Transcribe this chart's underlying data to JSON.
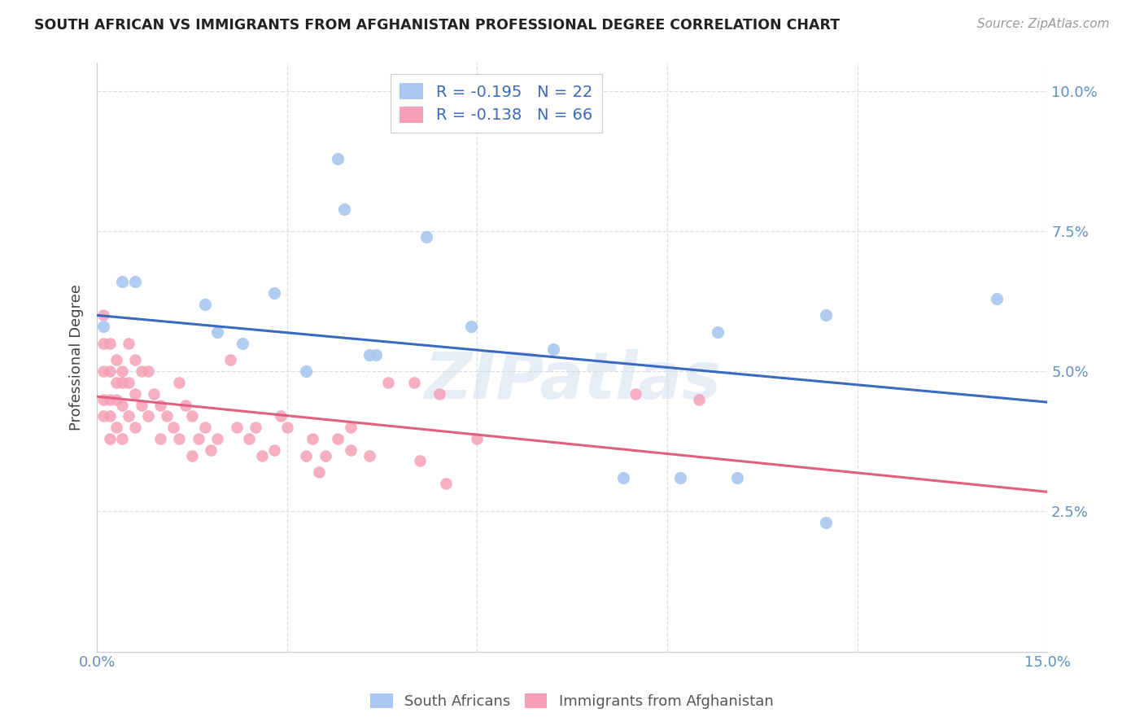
{
  "title": "SOUTH AFRICAN VS IMMIGRANTS FROM AFGHANISTAN PROFESSIONAL DEGREE CORRELATION CHART",
  "source": "Source: ZipAtlas.com",
  "ylabel": "Professional Degree",
  "xlim": [
    0.0,
    0.15
  ],
  "ylim": [
    0.0,
    0.105
  ],
  "blue_R": -0.195,
  "blue_N": 22,
  "pink_R": -0.138,
  "pink_N": 66,
  "blue_color": "#a8c8f0",
  "pink_color": "#f5a0b8",
  "blue_line_color": "#3a6abf",
  "pink_line_color": "#e06080",
  "grid_color": "#d8dde8",
  "background_color": "#ffffff",
  "legend_label_blue": "South Africans",
  "legend_label_pink": "Immigrants from Afghanistan",
  "blue_line_x0": 0.0,
  "blue_line_x1": 0.15,
  "blue_line_y0": 0.06,
  "blue_line_y1": 0.0445,
  "pink_line_x0": 0.0,
  "pink_line_x1": 0.15,
  "pink_line_y0": 0.0455,
  "pink_line_y1": 0.0285,
  "blue_x": [
    0.001,
    0.004,
    0.006,
    0.017,
    0.019,
    0.023,
    0.028,
    0.033,
    0.038,
    0.039,
    0.052,
    0.059,
    0.043,
    0.044,
    0.072,
    0.083,
    0.092,
    0.098,
    0.101,
    0.115,
    0.115,
    0.142
  ],
  "blue_y": [
    0.058,
    0.066,
    0.066,
    0.062,
    0.057,
    0.055,
    0.064,
    0.05,
    0.088,
    0.079,
    0.074,
    0.058,
    0.053,
    0.053,
    0.054,
    0.031,
    0.031,
    0.057,
    0.031,
    0.023,
    0.06,
    0.063
  ],
  "pink_x": [
    0.001,
    0.001,
    0.001,
    0.001,
    0.001,
    0.002,
    0.002,
    0.002,
    0.002,
    0.002,
    0.003,
    0.003,
    0.003,
    0.003,
    0.004,
    0.004,
    0.004,
    0.004,
    0.005,
    0.005,
    0.005,
    0.006,
    0.006,
    0.006,
    0.007,
    0.007,
    0.008,
    0.008,
    0.009,
    0.01,
    0.01,
    0.011,
    0.012,
    0.013,
    0.013,
    0.014,
    0.015,
    0.015,
    0.016,
    0.017,
    0.018,
    0.019,
    0.021,
    0.022,
    0.024,
    0.025,
    0.026,
    0.028,
    0.029,
    0.03,
    0.033,
    0.034,
    0.035,
    0.036,
    0.038,
    0.04,
    0.04,
    0.043,
    0.046,
    0.05,
    0.051,
    0.054,
    0.055,
    0.06,
    0.085,
    0.095
  ],
  "pink_y": [
    0.055,
    0.06,
    0.05,
    0.045,
    0.042,
    0.055,
    0.05,
    0.045,
    0.042,
    0.038,
    0.052,
    0.048,
    0.045,
    0.04,
    0.05,
    0.048,
    0.044,
    0.038,
    0.055,
    0.048,
    0.042,
    0.052,
    0.046,
    0.04,
    0.05,
    0.044,
    0.05,
    0.042,
    0.046,
    0.044,
    0.038,
    0.042,
    0.04,
    0.048,
    0.038,
    0.044,
    0.042,
    0.035,
    0.038,
    0.04,
    0.036,
    0.038,
    0.052,
    0.04,
    0.038,
    0.04,
    0.035,
    0.036,
    0.042,
    0.04,
    0.035,
    0.038,
    0.032,
    0.035,
    0.038,
    0.036,
    0.04,
    0.035,
    0.048,
    0.048,
    0.034,
    0.046,
    0.03,
    0.038,
    0.046,
    0.045
  ]
}
